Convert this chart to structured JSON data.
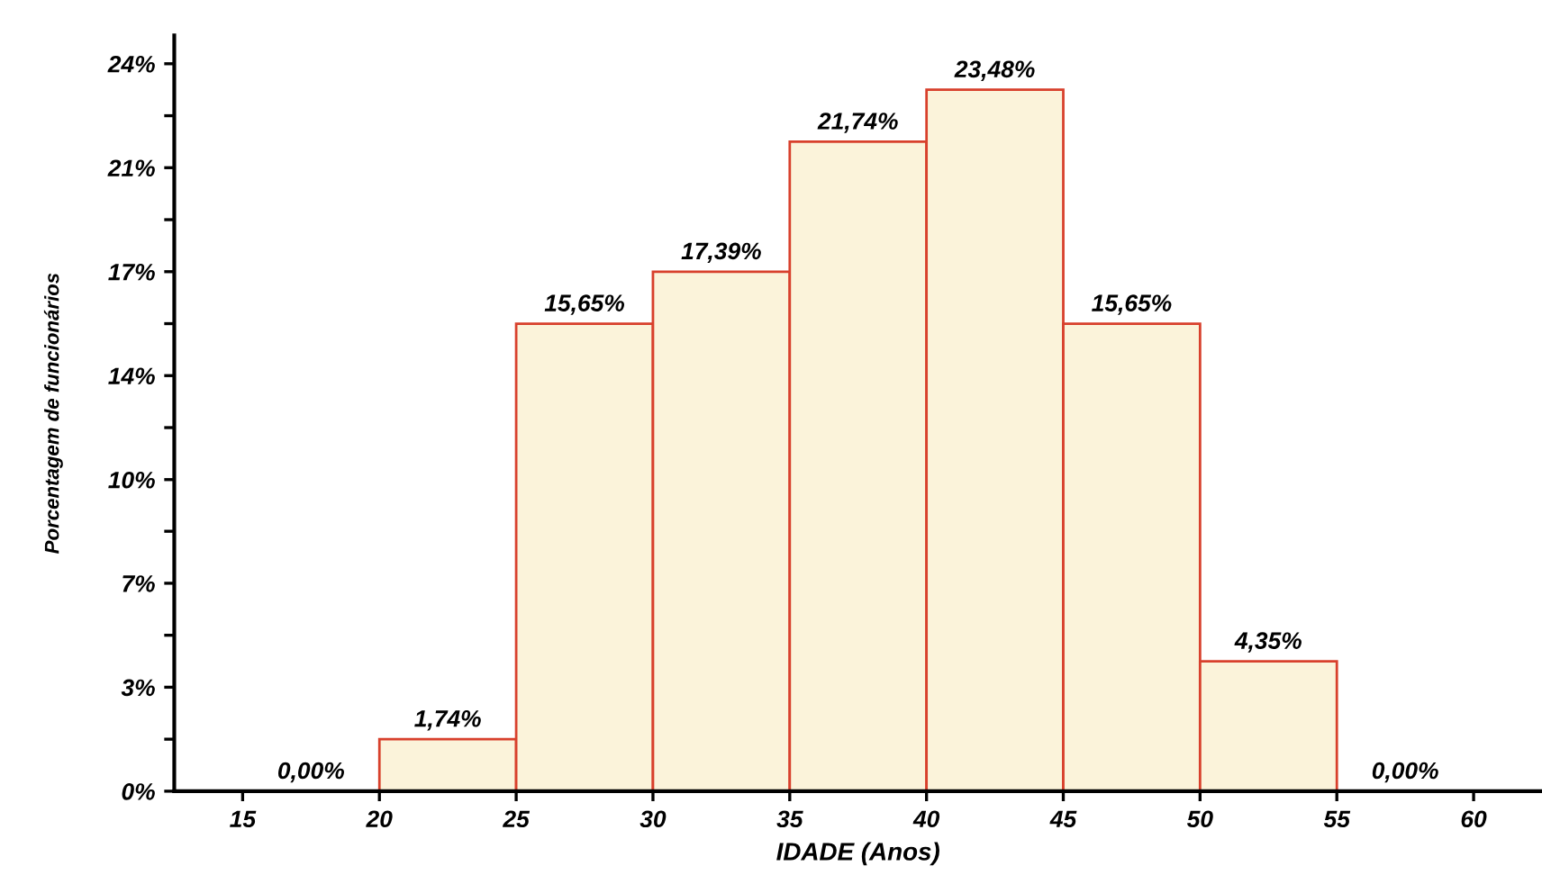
{
  "chart_data": {
    "type": "histogram",
    "xlabel": "IDADE (Anos)",
    "ylabel": "Porcentagem de funcionários",
    "bins": [
      15,
      20,
      25,
      30,
      35,
      40,
      45,
      50,
      55,
      60
    ],
    "values": [
      0,
      1.74,
      15.65,
      17.39,
      21.74,
      23.48,
      15.65,
      4.35,
      0
    ],
    "value_labels": [
      "0,00%",
      "1,74%",
      "15,65%",
      "17,39%",
      "21,74%",
      "23,48%",
      "15,65%",
      "4,35%",
      "0,00%"
    ],
    "color": "#fbf3da",
    "xlim": [
      12.5,
      62.5
    ],
    "xticks": [
      15,
      20,
      25,
      30,
      35,
      40,
      45,
      50,
      55,
      60
    ],
    "ylim": [
      0,
      25.3
    ],
    "yticks": [
      {
        "value": 0,
        "label": "0%"
      },
      {
        "value": 1.74,
        "label": null
      },
      {
        "value": 3.48,
        "label": "3%"
      },
      {
        "value": 5.22,
        "label": null
      },
      {
        "value": 6.96,
        "label": "7%"
      },
      {
        "value": 8.7,
        "label": null
      },
      {
        "value": 10.43,
        "label": "10%"
      },
      {
        "value": 12.17,
        "label": null
      },
      {
        "value": 13.91,
        "label": "14%"
      },
      {
        "value": 15.65,
        "label": null
      },
      {
        "value": 17.39,
        "label": "17%"
      },
      {
        "value": 19.13,
        "label": null
      },
      {
        "value": 20.87,
        "label": "21%"
      },
      {
        "value": 22.61,
        "label": null
      },
      {
        "value": 24.35,
        "label": "24%"
      }
    ],
    "grid": false,
    "legend": false
  }
}
